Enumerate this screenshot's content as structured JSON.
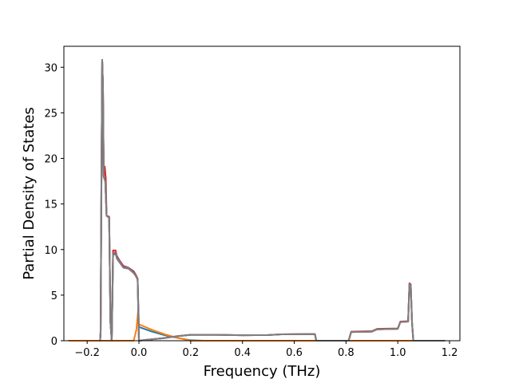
{
  "chart_data": {
    "type": "line",
    "title": "",
    "xlabel": "Frequency (THz)",
    "ylabel": "Partial Density of States",
    "xlim": [
      -0.29,
      1.24
    ],
    "ylim": [
      0,
      32.3
    ],
    "xticks": [
      {
        "value": -0.2,
        "label": "−0.2"
      },
      {
        "value": 0.0,
        "label": "0.0"
      },
      {
        "value": 0.2,
        "label": "0.2"
      },
      {
        "value": 0.4,
        "label": "0.4"
      },
      {
        "value": 0.6,
        "label": "0.6"
      },
      {
        "value": 0.8,
        "label": "0.8"
      },
      {
        "value": 1.0,
        "label": "1.0"
      },
      {
        "value": 1.2,
        "label": "1.2"
      }
    ],
    "yticks": [
      {
        "value": 0,
        "label": "0"
      },
      {
        "value": 5,
        "label": "5"
      },
      {
        "value": 10,
        "label": "10"
      },
      {
        "value": 15,
        "label": "15"
      },
      {
        "value": 20,
        "label": "20"
      },
      {
        "value": 25,
        "label": "25"
      },
      {
        "value": 30,
        "label": "30"
      }
    ],
    "grid": false,
    "series": [
      {
        "color": "#1f77b4",
        "points": [
          [
            -0.27,
            0
          ],
          [
            -0.15,
            0
          ],
          [
            -0.148,
            1
          ],
          [
            -0.145,
            17
          ],
          [
            -0.142,
            30.8
          ],
          [
            -0.139,
            28
          ],
          [
            -0.136,
            18
          ],
          [
            -0.13,
            17.5
          ],
          [
            -0.125,
            13.7
          ],
          [
            -0.115,
            13.5
          ],
          [
            -0.11,
            2
          ],
          [
            -0.105,
            0
          ],
          [
            -0.1,
            9.5
          ],
          [
            -0.095,
            9.6
          ],
          [
            -0.085,
            9.3
          ],
          [
            -0.075,
            8.8
          ],
          [
            -0.06,
            8.2
          ],
          [
            -0.04,
            8.0
          ],
          [
            -0.02,
            7.6
          ],
          [
            -0.01,
            7.1
          ],
          [
            -0.005,
            6.8
          ],
          [
            0,
            1.5
          ],
          [
            0.05,
            1.0
          ],
          [
            0.1,
            0.6
          ],
          [
            0.15,
            0.3
          ],
          [
            0.2,
            0.05
          ],
          [
            0.25,
            0
          ],
          [
            0.7,
            0
          ],
          [
            1.06,
            0
          ],
          [
            1.18,
            0
          ]
        ]
      },
      {
        "color": "#ff7f0e",
        "points": [
          [
            -0.27,
            0
          ],
          [
            -0.02,
            0
          ],
          [
            -0.01,
            1.2
          ],
          [
            -0.003,
            3.3
          ],
          [
            0,
            1.8
          ],
          [
            0.05,
            1.2
          ],
          [
            0.1,
            0.7
          ],
          [
            0.15,
            0.3
          ],
          [
            0.2,
            0
          ],
          [
            0.7,
            0
          ],
          [
            1.0,
            0
          ],
          [
            1.18,
            0
          ]
        ]
      },
      {
        "color": "#d62728",
        "points": [
          [
            -0.15,
            0
          ],
          [
            -0.148,
            1
          ],
          [
            -0.145,
            17
          ],
          [
            -0.142,
            30.8
          ],
          [
            -0.139,
            28
          ],
          [
            -0.136,
            18
          ],
          [
            -0.132,
            19.1
          ],
          [
            -0.128,
            17.8
          ],
          [
            -0.125,
            13.7
          ],
          [
            -0.115,
            13.6
          ],
          [
            -0.11,
            2
          ],
          [
            -0.105,
            0
          ],
          [
            -0.1,
            9.9
          ],
          [
            -0.09,
            9.9
          ],
          [
            -0.085,
            9.2
          ],
          [
            -0.075,
            8.8
          ],
          [
            -0.06,
            8.2
          ],
          [
            -0.04,
            8.0
          ],
          [
            -0.02,
            7.6
          ],
          [
            -0.01,
            7.1
          ],
          [
            -0.005,
            6.8
          ],
          [
            0,
            0
          ],
          [
            0.03,
            0.1
          ],
          [
            0.1,
            0.3
          ],
          [
            0.15,
            0.5
          ],
          [
            0.2,
            0.65
          ],
          [
            0.3,
            0.65
          ],
          [
            0.4,
            0.6
          ],
          [
            0.5,
            0.62
          ],
          [
            0.55,
            0.7
          ],
          [
            0.65,
            0.72
          ],
          [
            0.68,
            0.72
          ],
          [
            0.685,
            0
          ],
          [
            0.81,
            0
          ],
          [
            0.82,
            1.0
          ],
          [
            0.9,
            1.05
          ],
          [
            0.92,
            1.3
          ],
          [
            1.0,
            1.35
          ],
          [
            1.01,
            2.1
          ],
          [
            1.04,
            2.15
          ],
          [
            1.045,
            6.3
          ],
          [
            1.05,
            6.2
          ],
          [
            1.055,
            2.0
          ],
          [
            1.06,
            0
          ],
          [
            1.18,
            0
          ]
        ]
      },
      {
        "color": "#9467bd",
        "points": [
          [
            -0.15,
            0
          ],
          [
            -0.148,
            1
          ],
          [
            -0.145,
            17
          ],
          [
            -0.142,
            30.8
          ],
          [
            -0.139,
            28
          ],
          [
            -0.136,
            18
          ],
          [
            -0.13,
            17.5
          ],
          [
            -0.125,
            13.7
          ],
          [
            -0.115,
            13.5
          ],
          [
            -0.11,
            2
          ],
          [
            -0.105,
            0
          ],
          [
            -0.1,
            9.6
          ],
          [
            -0.09,
            9.7
          ],
          [
            -0.085,
            9.1
          ],
          [
            -0.075,
            8.7
          ],
          [
            -0.06,
            8.1
          ],
          [
            -0.04,
            8.0
          ],
          [
            -0.02,
            7.5
          ],
          [
            -0.01,
            7.0
          ],
          [
            -0.005,
            6.7
          ],
          [
            0,
            0
          ],
          [
            0.03,
            0.1
          ],
          [
            0.1,
            0.3
          ],
          [
            0.15,
            0.5
          ],
          [
            0.2,
            0.65
          ],
          [
            0.3,
            0.65
          ],
          [
            0.4,
            0.6
          ],
          [
            0.5,
            0.62
          ],
          [
            0.55,
            0.7
          ],
          [
            0.65,
            0.72
          ],
          [
            0.68,
            0.72
          ],
          [
            0.685,
            0
          ],
          [
            0.81,
            0
          ],
          [
            0.82,
            0.95
          ],
          [
            0.9,
            1.0
          ],
          [
            0.92,
            1.25
          ],
          [
            1.0,
            1.3
          ],
          [
            1.01,
            2.05
          ],
          [
            1.04,
            2.1
          ],
          [
            1.045,
            6.2
          ],
          [
            1.05,
            6.1
          ],
          [
            1.055,
            2.0
          ],
          [
            1.06,
            0
          ],
          [
            1.18,
            0
          ]
        ]
      },
      {
        "color": "#8c564b",
        "points": [
          [
            -0.15,
            0
          ],
          [
            -0.148,
            1
          ],
          [
            -0.145,
            17
          ],
          [
            -0.142,
            30.8
          ],
          [
            -0.139,
            28
          ],
          [
            -0.136,
            18
          ],
          [
            -0.13,
            17.5
          ],
          [
            -0.125,
            13.7
          ],
          [
            -0.115,
            13.5
          ],
          [
            -0.11,
            2
          ],
          [
            -0.105,
            0
          ],
          [
            -0.1,
            9.5
          ],
          [
            -0.09,
            9.6
          ],
          [
            -0.085,
            9.0
          ],
          [
            -0.075,
            8.6
          ],
          [
            -0.06,
            8.1
          ],
          [
            -0.04,
            7.9
          ],
          [
            -0.02,
            7.5
          ],
          [
            -0.01,
            7.0
          ],
          [
            -0.005,
            6.7
          ],
          [
            0,
            0
          ],
          [
            0.03,
            0.1
          ],
          [
            0.1,
            0.3
          ],
          [
            0.15,
            0.5
          ],
          [
            0.2,
            0.65
          ],
          [
            0.3,
            0.65
          ],
          [
            0.4,
            0.6
          ],
          [
            0.5,
            0.62
          ],
          [
            0.55,
            0.7
          ],
          [
            0.65,
            0.72
          ],
          [
            0.68,
            0.72
          ],
          [
            0.685,
            0
          ],
          [
            0.81,
            0
          ],
          [
            0.82,
            0.95
          ],
          [
            0.9,
            1.0
          ],
          [
            0.92,
            1.25
          ],
          [
            1.0,
            1.3
          ],
          [
            1.01,
            2.05
          ],
          [
            1.04,
            2.1
          ],
          [
            1.045,
            6.2
          ],
          [
            1.05,
            6.1
          ],
          [
            1.055,
            2.0
          ],
          [
            1.06,
            0
          ],
          [
            1.18,
            0
          ]
        ]
      },
      {
        "color": "#7f7f7f",
        "points": [
          [
            -0.15,
            0
          ],
          [
            -0.148,
            1
          ],
          [
            -0.145,
            17
          ],
          [
            -0.142,
            30.8
          ],
          [
            -0.139,
            28
          ],
          [
            -0.136,
            18
          ],
          [
            -0.13,
            17.5
          ],
          [
            -0.125,
            13.7
          ],
          [
            -0.115,
            13.5
          ],
          [
            -0.11,
            2
          ],
          [
            -0.105,
            0
          ],
          [
            -0.1,
            9.4
          ],
          [
            -0.09,
            9.5
          ],
          [
            -0.085,
            9.0
          ],
          [
            -0.075,
            8.6
          ],
          [
            -0.06,
            8.0
          ],
          [
            -0.04,
            7.9
          ],
          [
            -0.02,
            7.4
          ],
          [
            -0.01,
            7.0
          ],
          [
            -0.005,
            6.7
          ],
          [
            0,
            0
          ],
          [
            0.03,
            0.1
          ],
          [
            0.1,
            0.3
          ],
          [
            0.15,
            0.5
          ],
          [
            0.2,
            0.65
          ],
          [
            0.3,
            0.65
          ],
          [
            0.4,
            0.6
          ],
          [
            0.5,
            0.62
          ],
          [
            0.55,
            0.7
          ],
          [
            0.65,
            0.72
          ],
          [
            0.68,
            0.72
          ],
          [
            0.685,
            0
          ],
          [
            0.81,
            0
          ],
          [
            0.82,
            0.95
          ],
          [
            0.9,
            1.0
          ],
          [
            0.92,
            1.25
          ],
          [
            1.0,
            1.3
          ],
          [
            1.01,
            2.05
          ],
          [
            1.04,
            2.1
          ],
          [
            1.045,
            6.2
          ],
          [
            1.05,
            6.1
          ],
          [
            1.055,
            2.0
          ],
          [
            1.06,
            0
          ],
          [
            1.18,
            0
          ]
        ]
      }
    ]
  }
}
